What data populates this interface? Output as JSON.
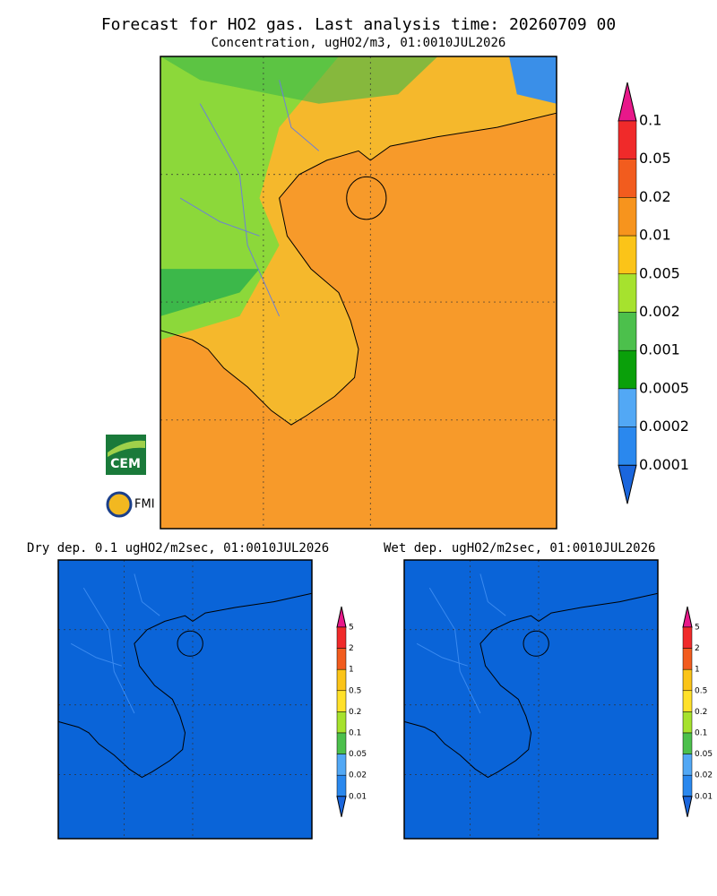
{
  "header": {
    "title": "Forecast for HO2 gas. Last analysis time: 20260709 00",
    "subtitle": "Concentration, ugHO2/m3, 01:0010JUL2026"
  },
  "main_map": {
    "colorbar": {
      "labels": [
        "0.1",
        "0.05",
        "0.02",
        "0.01",
        "0.005",
        "0.002",
        "0.001",
        "0.0005",
        "0.0002",
        "0.0001"
      ]
    }
  },
  "logos": {
    "cem": "CEM",
    "fmi": "FMI"
  },
  "panels": [
    {
      "title": "Dry dep. 0.1 ugHO2/m2sec, 01:0010JUL2026",
      "colorbar": {
        "labels": [
          "5",
          "2",
          "1",
          "0.5",
          "0.2",
          "0.1",
          "0.05",
          "0.02",
          "0.01"
        ]
      }
    },
    {
      "title": "Wet dep. ugHO2/m2sec, 01:0010JUL2026",
      "colorbar": {
        "labels": [
          "5",
          "2",
          "1",
          "0.5",
          "0.2",
          "0.1",
          "0.05",
          "0.02",
          "0.01"
        ]
      }
    }
  ]
}
